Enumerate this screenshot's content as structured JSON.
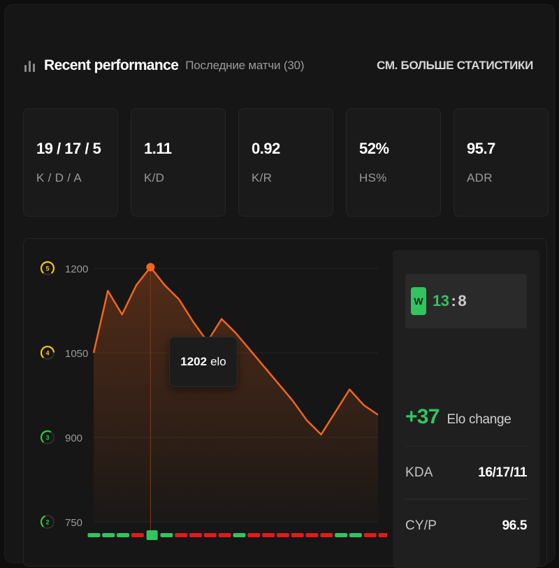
{
  "header": {
    "title": "Recent performance",
    "subtitle": "Последние матчи (30)",
    "more_link": "СМ. БОЛЬШЕ СТАТИСТИКИ"
  },
  "stats": [
    {
      "value": "19 / 17 / 5",
      "label": "K / D / A"
    },
    {
      "value": "1.11",
      "label": "K/D"
    },
    {
      "value": "0.92",
      "label": "K/R"
    },
    {
      "value": "52%",
      "label": "HS%"
    },
    {
      "value": "95.7",
      "label": "ADR"
    }
  ],
  "colors": {
    "accent_orange": "#f2661c",
    "win_green": "#32c45e",
    "loss_red": "#e01b1b",
    "level_yellow": "#f5c518",
    "level_green": "#2ecc40"
  },
  "chart_data": {
    "type": "line",
    "title": "",
    "y_ticks": [
      "1200",
      "1050",
      "900",
      "750"
    ],
    "ylim": [
      750,
      1200
    ],
    "level_markers": [
      {
        "level": "5",
        "elo": 1200
      },
      {
        "level": "4",
        "elo": 1050
      },
      {
        "level": "3",
        "elo": 900
      },
      {
        "level": "2",
        "elo": 750
      }
    ],
    "series": [
      {
        "values": [
          1050,
          1160,
          1118,
          1170,
          1202,
          1170,
          1145,
          1105,
          1070,
          1110,
          1085,
          1055,
          1025,
          995,
          965,
          930,
          905,
          945,
          985,
          957,
          940
        ]
      }
    ],
    "highlight_index": 4,
    "tooltip_value": "1202",
    "tooltip_unit": "elo",
    "results": [
      "W",
      "W",
      "W",
      "L",
      "W",
      "W",
      "L",
      "L",
      "L",
      "L",
      "W",
      "L",
      "L",
      "L",
      "L",
      "L",
      "L",
      "W",
      "W",
      "L",
      "L"
    ]
  },
  "match": {
    "result_badge": "W",
    "score_ours": "13",
    "score_theirs": "8",
    "elo_change": "+37",
    "elo_change_label": "Elo change",
    "rows": [
      {
        "key": "KDA",
        "value": "16/17/11"
      },
      {
        "key": "CY/P",
        "value": "96.5"
      }
    ]
  }
}
